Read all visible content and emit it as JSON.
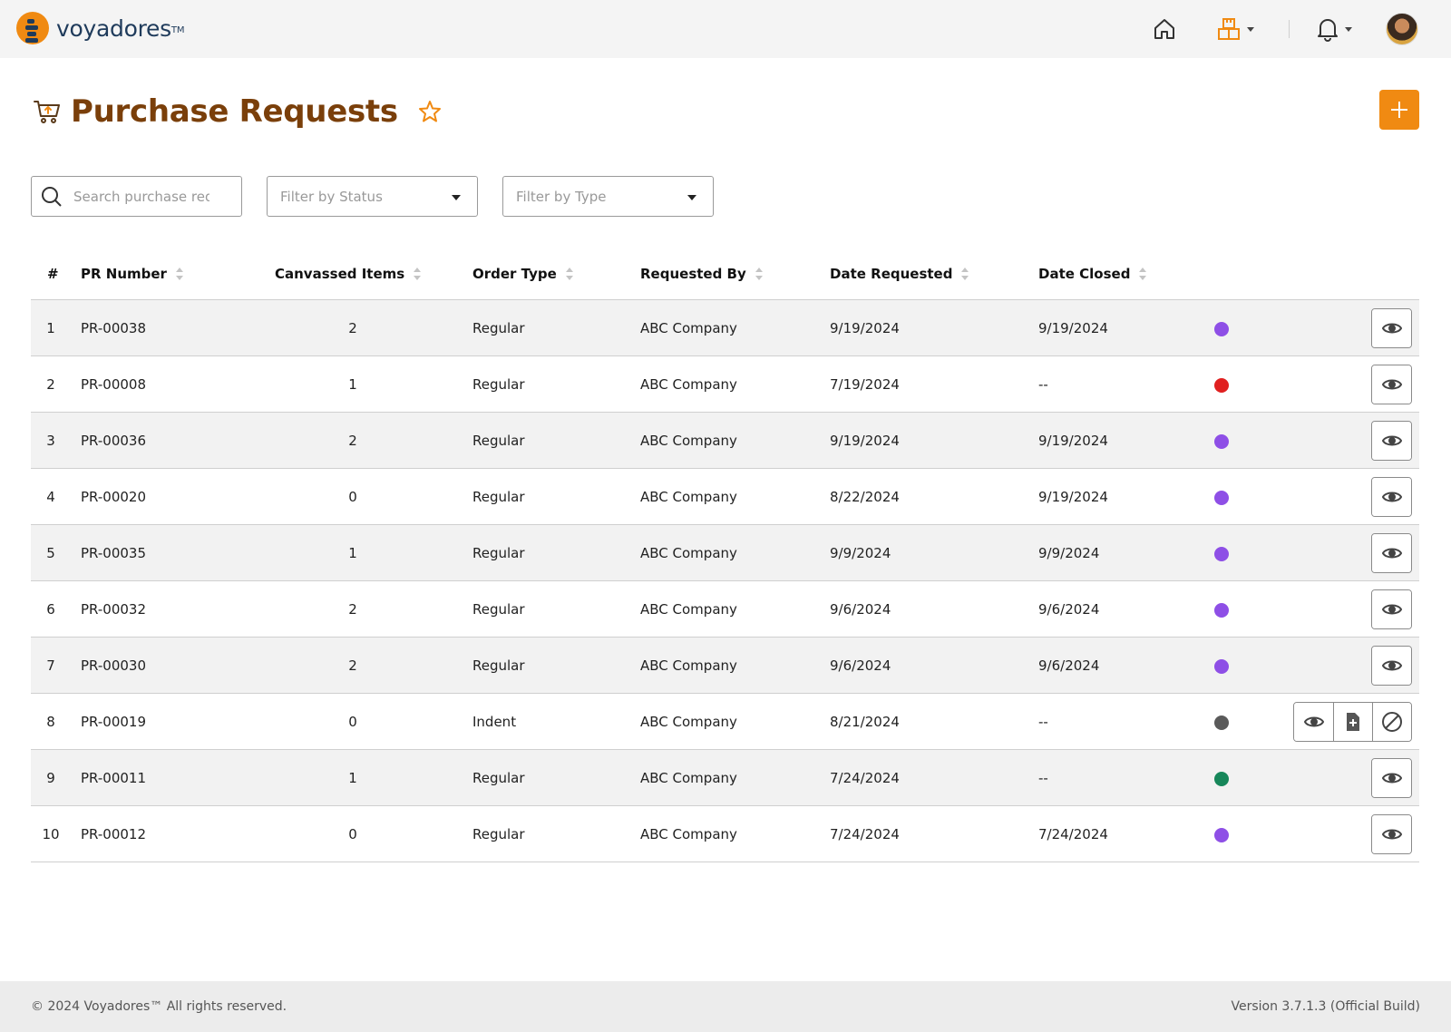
{
  "brand": {
    "name": "voyadores",
    "tm": "TM"
  },
  "header": {
    "home_icon": "home-icon",
    "store_icon": "boxes-icon",
    "bell_icon": "bell-icon"
  },
  "page": {
    "title": "Purchase Requests",
    "title_color": "#7a3f0a",
    "accent": "#f08a12"
  },
  "filters": {
    "search_placeholder": "Search purchase requests",
    "status_placeholder": "Filter by Status",
    "type_placeholder": "Filter by Type"
  },
  "table": {
    "columns": [
      "#",
      "PR Number",
      "Canvassed Items",
      "Order Type",
      "Requested By",
      "Date Requested",
      "Date Closed"
    ],
    "rows": [
      {
        "no": "1",
        "pr": "PR-00038",
        "items": "2",
        "type": "Regular",
        "by": "ABC Company",
        "requested": "9/19/2024",
        "closed": "9/19/2024",
        "status_color": "#8e4fe6",
        "actions": [
          "view"
        ]
      },
      {
        "no": "2",
        "pr": "PR-00008",
        "items": "1",
        "type": "Regular",
        "by": "ABC Company",
        "requested": "7/19/2024",
        "closed": "--",
        "status_color": "#e02020",
        "actions": [
          "view"
        ]
      },
      {
        "no": "3",
        "pr": "PR-00036",
        "items": "2",
        "type": "Regular",
        "by": "ABC Company",
        "requested": "9/19/2024",
        "closed": "9/19/2024",
        "status_color": "#8e4fe6",
        "actions": [
          "view"
        ]
      },
      {
        "no": "4",
        "pr": "PR-00020",
        "items": "0",
        "type": "Regular",
        "by": "ABC Company",
        "requested": "8/22/2024",
        "closed": "9/19/2024",
        "status_color": "#8e4fe6",
        "actions": [
          "view"
        ]
      },
      {
        "no": "5",
        "pr": "PR-00035",
        "items": "1",
        "type": "Regular",
        "by": "ABC Company",
        "requested": "9/9/2024",
        "closed": "9/9/2024",
        "status_color": "#8e4fe6",
        "actions": [
          "view"
        ]
      },
      {
        "no": "6",
        "pr": "PR-00032",
        "items": "2",
        "type": "Regular",
        "by": "ABC Company",
        "requested": "9/6/2024",
        "closed": "9/6/2024",
        "status_color": "#8e4fe6",
        "actions": [
          "view"
        ]
      },
      {
        "no": "7",
        "pr": "PR-00030",
        "items": "2",
        "type": "Regular",
        "by": "ABC Company",
        "requested": "9/6/2024",
        "closed": "9/6/2024",
        "status_color": "#8e4fe6",
        "actions": [
          "view"
        ]
      },
      {
        "no": "8",
        "pr": "PR-00019",
        "items": "0",
        "type": "Indent",
        "by": "ABC Company",
        "requested": "8/21/2024",
        "closed": "--",
        "status_color": "#5a5a5a",
        "actions": [
          "view",
          "add-file",
          "cancel"
        ]
      },
      {
        "no": "9",
        "pr": "PR-00011",
        "items": "1",
        "type": "Regular",
        "by": "ABC Company",
        "requested": "7/24/2024",
        "closed": "--",
        "status_color": "#17875a",
        "actions": [
          "view"
        ]
      },
      {
        "no": "10",
        "pr": "PR-00012",
        "items": "0",
        "type": "Regular",
        "by": "ABC Company",
        "requested": "7/24/2024",
        "closed": "7/24/2024",
        "status_color": "#8e4fe6",
        "actions": [
          "view"
        ]
      }
    ]
  },
  "footer": {
    "copyright": "© 2024 Voyadores™ All rights reserved.",
    "version": "Version 3.7.1.3 (Official Build)"
  }
}
